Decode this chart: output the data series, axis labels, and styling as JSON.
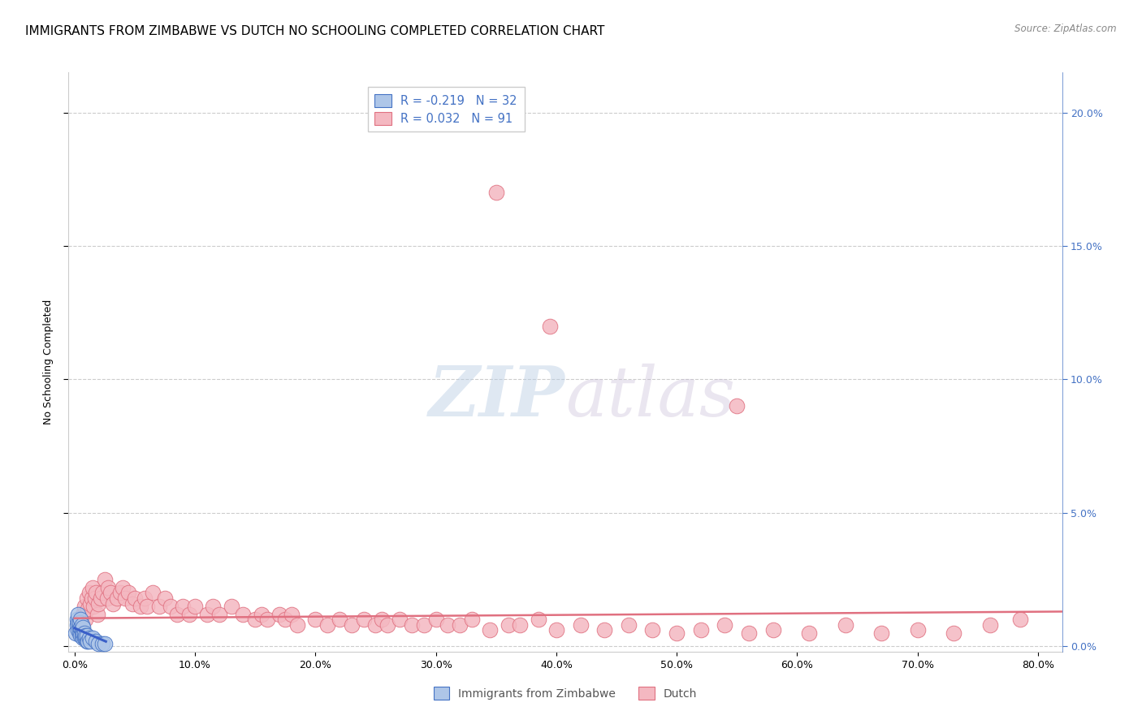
{
  "title": "IMMIGRANTS FROM ZIMBABWE VS DUTCH NO SCHOOLING COMPLETED CORRELATION CHART",
  "source": "Source: ZipAtlas.com",
  "ylabel_left": "No Schooling Completed",
  "ylim": [
    -0.002,
    0.215
  ],
  "xlim": [
    -0.005,
    0.82
  ],
  "blue_R": "-0.219",
  "blue_N": "32",
  "pink_R": "0.032",
  "pink_N": "91",
  "blue_fill": "#aec6e8",
  "pink_fill": "#f4b8c1",
  "blue_edge": "#4472c4",
  "pink_edge": "#e07080",
  "blue_line": "#3a5fc8",
  "pink_line": "#e07080",
  "legend_label_blue": "Immigrants from Zimbabwe",
  "legend_label_pink": "Dutch",
  "watermark_zip": "ZIP",
  "watermark_atlas": "atlas",
  "grid_color": "#cccccc",
  "bg_color": "#ffffff",
  "right_axis_color": "#4472c4",
  "title_fontsize": 11,
  "tick_fontsize": 9,
  "blue_x": [
    0.001,
    0.002,
    0.002,
    0.003,
    0.003,
    0.003,
    0.004,
    0.004,
    0.004,
    0.005,
    0.005,
    0.005,
    0.006,
    0.006,
    0.006,
    0.007,
    0.007,
    0.007,
    0.008,
    0.008,
    0.009,
    0.009,
    0.01,
    0.01,
    0.011,
    0.012,
    0.013,
    0.015,
    0.018,
    0.02,
    0.023,
    0.025
  ],
  "blue_y": [
    0.005,
    0.008,
    0.01,
    0.006,
    0.009,
    0.012,
    0.005,
    0.007,
    0.009,
    0.004,
    0.007,
    0.01,
    0.004,
    0.006,
    0.008,
    0.003,
    0.005,
    0.007,
    0.003,
    0.005,
    0.003,
    0.004,
    0.002,
    0.004,
    0.002,
    0.003,
    0.002,
    0.003,
    0.002,
    0.001,
    0.001,
    0.001
  ],
  "pink_x": [
    0.005,
    0.007,
    0.008,
    0.009,
    0.01,
    0.011,
    0.012,
    0.013,
    0.014,
    0.015,
    0.016,
    0.017,
    0.018,
    0.019,
    0.02,
    0.022,
    0.023,
    0.025,
    0.027,
    0.028,
    0.03,
    0.032,
    0.035,
    0.038,
    0.04,
    0.042,
    0.045,
    0.048,
    0.05,
    0.055,
    0.058,
    0.06,
    0.065,
    0.07,
    0.075,
    0.08,
    0.085,
    0.09,
    0.095,
    0.1,
    0.11,
    0.115,
    0.12,
    0.13,
    0.14,
    0.15,
    0.155,
    0.16,
    0.17,
    0.175,
    0.18,
    0.185,
    0.2,
    0.21,
    0.22,
    0.23,
    0.24,
    0.25,
    0.255,
    0.26,
    0.27,
    0.28,
    0.29,
    0.3,
    0.31,
    0.32,
    0.33,
    0.345,
    0.36,
    0.37,
    0.385,
    0.4,
    0.42,
    0.44,
    0.46,
    0.48,
    0.5,
    0.52,
    0.54,
    0.56,
    0.58,
    0.61,
    0.64,
    0.67,
    0.7,
    0.73,
    0.76,
    0.785,
    0.35,
    0.395,
    0.55
  ],
  "pink_y": [
    0.008,
    0.012,
    0.015,
    0.01,
    0.018,
    0.014,
    0.02,
    0.016,
    0.018,
    0.022,
    0.015,
    0.018,
    0.02,
    0.012,
    0.016,
    0.018,
    0.02,
    0.025,
    0.018,
    0.022,
    0.02,
    0.016,
    0.018,
    0.02,
    0.022,
    0.018,
    0.02,
    0.016,
    0.018,
    0.015,
    0.018,
    0.015,
    0.02,
    0.015,
    0.018,
    0.015,
    0.012,
    0.015,
    0.012,
    0.015,
    0.012,
    0.015,
    0.012,
    0.015,
    0.012,
    0.01,
    0.012,
    0.01,
    0.012,
    0.01,
    0.012,
    0.008,
    0.01,
    0.008,
    0.01,
    0.008,
    0.01,
    0.008,
    0.01,
    0.008,
    0.01,
    0.008,
    0.008,
    0.01,
    0.008,
    0.008,
    0.01,
    0.006,
    0.008,
    0.008,
    0.01,
    0.006,
    0.008,
    0.006,
    0.008,
    0.006,
    0.005,
    0.006,
    0.008,
    0.005,
    0.006,
    0.005,
    0.008,
    0.005,
    0.006,
    0.005,
    0.008,
    0.01,
    0.17,
    0.12,
    0.09
  ],
  "blue_trend_x": [
    0.0,
    0.026
  ],
  "blue_trend_y": [
    0.0068,
    0.0018
  ],
  "pink_trend_x": [
    0.0,
    0.82
  ],
  "pink_trend_y": [
    0.0105,
    0.013
  ]
}
